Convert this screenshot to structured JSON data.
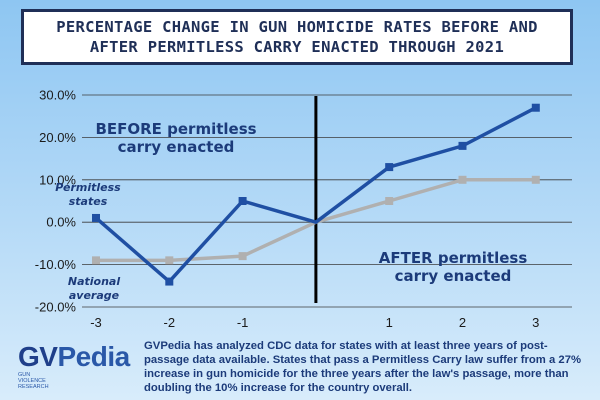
{
  "title_lines": [
    "Percentage Change in Gun Homicide Rates Before and",
    "After Permitless Carry Enacted Through 2021"
  ],
  "annotations": {
    "before_line1": "BEFORE permitless",
    "before_line2": "carry enacted",
    "after_line1": "AFTER permitless",
    "after_line2": "carry enacted",
    "states_line1": "Permitless",
    "states_line2": "states",
    "national_line1": "National",
    "national_line2": "average"
  },
  "logo": {
    "wordmark_a": "GV",
    "wordmark_b": "Pedia",
    "subtitle": "GUN VIOLENCE RESEARCH"
  },
  "caption": "GVPedia has analyzed CDC data for states with at least three years of post-passage data available. States that pass a Permitless Carry law suffer from a 27% increase in gun homicide for the three years after the law's passage, more than doubling the 10% increase for the country overall.",
  "colors": {
    "permitless": "#1f4fa3",
    "national": "#b0b0b0",
    "divider": "#000000",
    "grid": "#3b3b3b"
  },
  "chart_data": {
    "type": "line",
    "x": [
      -3,
      -2,
      -1,
      0,
      1,
      2,
      3
    ],
    "x_tick_labels": [
      "-3",
      "-2",
      "-1",
      "",
      "1",
      "2",
      "3"
    ],
    "y_tick_labels": [
      "30.0%",
      "20.0%",
      "10.0%",
      "0.0%",
      "-10.0%",
      "-20.0%"
    ],
    "ylim": [
      -20,
      30
    ],
    "grid": true,
    "series": [
      {
        "name": "Permitless states",
        "values": [
          1,
          -14,
          5,
          0,
          13,
          18,
          27
        ]
      },
      {
        "name": "National average",
        "values": [
          -9,
          -9,
          -8,
          0,
          5,
          10,
          10
        ]
      }
    ]
  }
}
